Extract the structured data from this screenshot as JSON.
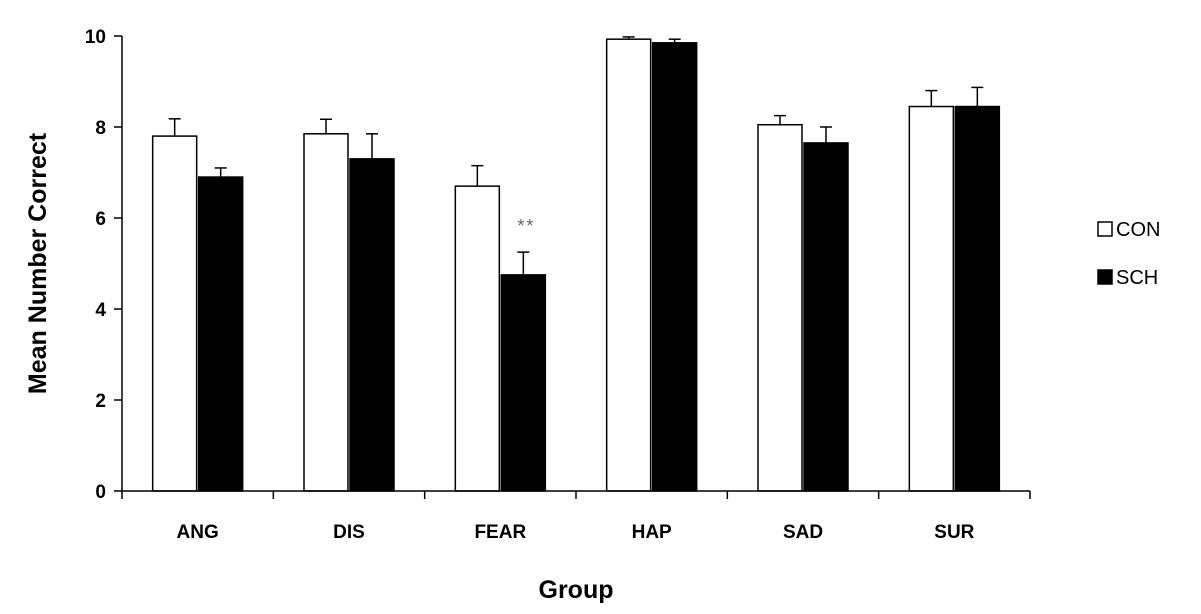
{
  "chart_data": {
    "type": "bar",
    "title": "",
    "xlabel": "Group",
    "ylabel": "Mean Number Correct",
    "ylim": [
      0,
      10
    ],
    "yticks": [
      0,
      2,
      4,
      6,
      8,
      10
    ],
    "grid": false,
    "legend_position": "right",
    "categories": [
      "ANG",
      "DIS",
      "FEAR",
      "HAP",
      "SAD",
      "SUR"
    ],
    "series": [
      {
        "name": "CON",
        "color": "#ffffff",
        "values": [
          7.8,
          7.85,
          6.7,
          9.93,
          8.05,
          8.45
        ],
        "errors": [
          0.38,
          0.32,
          0.45,
          0.05,
          0.2,
          0.35
        ]
      },
      {
        "name": "SCH",
        "color": "#000000",
        "values": [
          6.9,
          7.3,
          4.75,
          9.85,
          7.65,
          8.45
        ],
        "errors": [
          0.2,
          0.55,
          0.5,
          0.08,
          0.35,
          0.42
        ]
      }
    ],
    "annotations": [
      {
        "category": "FEAR",
        "series": "SCH",
        "text": "**"
      }
    ]
  }
}
